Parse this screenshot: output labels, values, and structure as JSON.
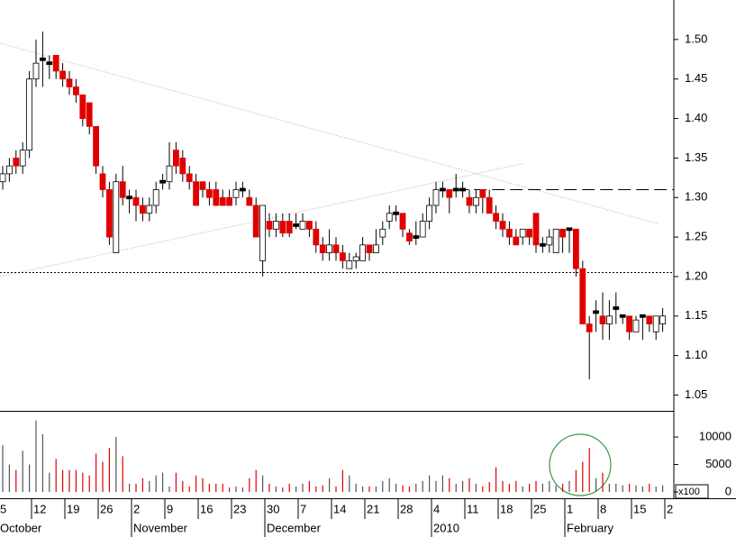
{
  "chart_data": [
    {
      "type": "candlestick",
      "up_color": "#ffffff",
      "down_color": "#e00000",
      "doji_color": "#000000",
      "open": [
        1.32,
        1.33,
        1.35,
        1.34,
        1.36,
        1.45,
        1.475,
        1.47,
        1.48,
        1.46,
        1.45,
        1.44,
        1.43,
        1.42,
        1.39,
        1.33,
        1.31,
        1.23,
        1.32,
        1.3,
        1.3,
        1.29,
        1.28,
        1.29,
        1.32,
        1.32,
        1.36,
        1.35,
        1.33,
        1.32,
        1.32,
        1.31,
        1.31,
        1.3,
        1.3,
        1.3,
        1.31,
        1.3,
        1.29,
        1.22,
        1.27,
        1.26,
        1.27,
        1.27,
        1.265,
        1.26,
        1.27,
        1.26,
        1.24,
        1.23,
        1.24,
        1.23,
        1.21,
        1.22,
        1.22,
        1.24,
        1.23,
        1.25,
        1.27,
        1.28,
        1.28,
        1.255,
        1.25,
        1.25,
        1.27,
        1.29,
        1.31,
        1.31,
        1.31,
        1.31,
        1.3,
        1.29,
        1.31,
        1.3,
        1.28,
        1.27,
        1.26,
        1.25,
        1.25,
        1.26,
        1.28,
        1.24,
        1.24,
        1.23,
        1.26,
        1.26,
        1.26,
        1.21,
        1.14,
        1.155,
        1.15,
        1.14,
        1.16,
        1.15,
        1.15,
        1.13,
        1.15,
        1.15,
        1.13,
        1.14
      ],
      "high": [
        1.34,
        1.35,
        1.36,
        1.37,
        1.46,
        1.5,
        1.51,
        1.48,
        1.48,
        1.47,
        1.46,
        1.45,
        1.43,
        1.42,
        1.39,
        1.34,
        1.32,
        1.33,
        1.34,
        1.31,
        1.31,
        1.3,
        1.3,
        1.32,
        1.33,
        1.37,
        1.37,
        1.36,
        1.34,
        1.33,
        1.32,
        1.32,
        1.32,
        1.31,
        1.31,
        1.32,
        1.32,
        1.31,
        1.3,
        1.29,
        1.28,
        1.28,
        1.28,
        1.28,
        1.28,
        1.28,
        1.27,
        1.27,
        1.25,
        1.26,
        1.25,
        1.24,
        1.23,
        1.23,
        1.25,
        1.24,
        1.26,
        1.27,
        1.29,
        1.29,
        1.28,
        1.26,
        1.27,
        1.28,
        1.3,
        1.32,
        1.32,
        1.31,
        1.33,
        1.32,
        1.31,
        1.31,
        1.31,
        1.31,
        1.29,
        1.28,
        1.27,
        1.26,
        1.26,
        1.26,
        1.28,
        1.25,
        1.26,
        1.26,
        1.26,
        1.26,
        1.26,
        1.22,
        1.15,
        1.17,
        1.18,
        1.17,
        1.18,
        1.15,
        1.15,
        1.15,
        1.15,
        1.15,
        1.15,
        1.16
      ],
      "low": [
        1.31,
        1.32,
        1.33,
        1.33,
        1.35,
        1.44,
        1.44,
        1.45,
        1.45,
        1.44,
        1.43,
        1.42,
        1.39,
        1.38,
        1.33,
        1.3,
        1.24,
        1.23,
        1.29,
        1.28,
        1.27,
        1.27,
        1.27,
        1.28,
        1.31,
        1.31,
        1.33,
        1.32,
        1.31,
        1.29,
        1.3,
        1.29,
        1.29,
        1.29,
        1.29,
        1.29,
        1.3,
        1.29,
        1.25,
        1.2,
        1.25,
        1.25,
        1.25,
        1.25,
        1.26,
        1.26,
        1.25,
        1.23,
        1.22,
        1.22,
        1.22,
        1.21,
        1.21,
        1.21,
        1.22,
        1.22,
        1.23,
        1.24,
        1.26,
        1.27,
        1.25,
        1.24,
        1.24,
        1.25,
        1.26,
        1.28,
        1.3,
        1.28,
        1.3,
        1.3,
        1.28,
        1.28,
        1.28,
        1.28,
        1.26,
        1.25,
        1.24,
        1.24,
        1.24,
        1.24,
        1.23,
        1.23,
        1.23,
        1.23,
        1.23,
        1.23,
        1.2,
        1.14,
        1.07,
        1.13,
        1.12,
        1.12,
        1.14,
        1.14,
        1.12,
        1.13,
        1.12,
        1.13,
        1.12,
        1.13
      ],
      "close": [
        1.33,
        1.34,
        1.34,
        1.36,
        1.45,
        1.47,
        1.475,
        1.47,
        1.46,
        1.45,
        1.44,
        1.43,
        1.4,
        1.39,
        1.34,
        1.31,
        1.25,
        1.32,
        1.3,
        1.3,
        1.29,
        1.28,
        1.29,
        1.31,
        1.32,
        1.34,
        1.34,
        1.33,
        1.32,
        1.29,
        1.31,
        1.3,
        1.29,
        1.29,
        1.29,
        1.31,
        1.31,
        1.29,
        1.25,
        1.29,
        1.26,
        1.27,
        1.255,
        1.255,
        1.265,
        1.27,
        1.26,
        1.24,
        1.23,
        1.24,
        1.23,
        1.22,
        1.22,
        1.225,
        1.24,
        1.23,
        1.24,
        1.26,
        1.28,
        1.28,
        1.26,
        1.245,
        1.25,
        1.27,
        1.29,
        1.31,
        1.31,
        1.3,
        1.31,
        1.31,
        1.29,
        1.3,
        1.3,
        1.28,
        1.27,
        1.26,
        1.25,
        1.24,
        1.26,
        1.25,
        1.24,
        1.24,
        1.25,
        1.26,
        1.25,
        1.26,
        1.21,
        1.14,
        1.13,
        1.155,
        1.14,
        1.15,
        1.16,
        1.15,
        1.13,
        1.145,
        1.15,
        1.14,
        1.15,
        1.15
      ],
      "ylim": [
        1.03,
        1.55
      ],
      "yticks": [
        1.05,
        {
          "value": 1.1,
          "label": "1.10"
        },
        1.15,
        {
          "value": 1.2,
          "label": "1.20"
        },
        1.25,
        {
          "value": 1.3,
          "label": "1.30"
        },
        1.35,
        {
          "value": 1.4,
          "label": "1.40"
        },
        1.45,
        {
          "value": 1.5,
          "label": "1.50"
        }
      ],
      "xticks": [
        {
          "value": 0,
          "label": "5"
        },
        {
          "value": 5,
          "label": "12"
        },
        {
          "value": 10,
          "label": "19"
        },
        {
          "value": 15,
          "label": "26"
        },
        {
          "value": 20,
          "label": "2"
        },
        {
          "value": 25,
          "label": "9"
        },
        {
          "value": 30,
          "label": "16"
        },
        {
          "value": 35,
          "label": "23"
        },
        {
          "value": 40,
          "label": "30"
        },
        {
          "value": 45,
          "label": "7"
        },
        {
          "value": 50,
          "label": "14"
        },
        {
          "value": 55,
          "label": "21"
        },
        {
          "value": 60,
          "label": "28"
        },
        {
          "value": 65,
          "label": "4"
        },
        {
          "value": 70,
          "label": "11"
        },
        {
          "value": 75,
          "label": "18"
        },
        {
          "value": 80,
          "label": "25"
        },
        {
          "value": 85,
          "label": "1"
        },
        {
          "value": 90,
          "label": "8"
        },
        {
          "value": 95,
          "label": "15"
        },
        {
          "value": 100,
          "label": "2"
        }
      ],
      "period_labels": [
        {
          "value": 0,
          "label": "October"
        },
        {
          "value": 20,
          "label": "November"
        },
        {
          "value": 40,
          "label": "December"
        },
        {
          "value": 65,
          "label": "2010"
        },
        {
          "value": 85,
          "label": "February"
        }
      ],
      "hlines": [
        {
          "value": 1.205,
          "style": "dotted"
        },
        {
          "value": 1.31,
          "style": "dashed",
          "from": 68
        }
      ]
    },
    {
      "type": "bar",
      "values": [
        8500,
        5000,
        4000,
        7500,
        5000,
        13000,
        10500,
        3500,
        6000,
        4000,
        4000,
        4000,
        3500,
        3000,
        7000,
        5500,
        8000,
        10000,
        6500,
        1500,
        1500,
        2500,
        2000,
        3000,
        3500,
        1000,
        3500,
        2000,
        1000,
        3000,
        2500,
        1500,
        1500,
        1500,
        800,
        1000,
        800,
        2500,
        4000,
        3000,
        1500,
        1000,
        800,
        1500,
        1000,
        1500,
        2000,
        1000,
        1200,
        2500,
        1000,
        4000,
        3000,
        1500,
        1000,
        1000,
        1000,
        2000,
        2500,
        1500,
        1200,
        1000,
        1500,
        2000,
        3000,
        2000,
        3000,
        2500,
        1500,
        2000,
        2500,
        1500,
        1000,
        1800,
        4500,
        2000,
        1500,
        2000,
        1000,
        1500,
        2000,
        1500,
        2000,
        1200,
        1500,
        2000,
        4000,
        5500,
        8000,
        2500,
        3500,
        1500,
        1500,
        1200,
        1500,
        1200,
        1000,
        1500,
        1000,
        1200
      ],
      "ylim": [
        0,
        14600
      ],
      "yticks": [
        0,
        5000,
        10000
      ],
      "unit_label": "x100"
    }
  ]
}
